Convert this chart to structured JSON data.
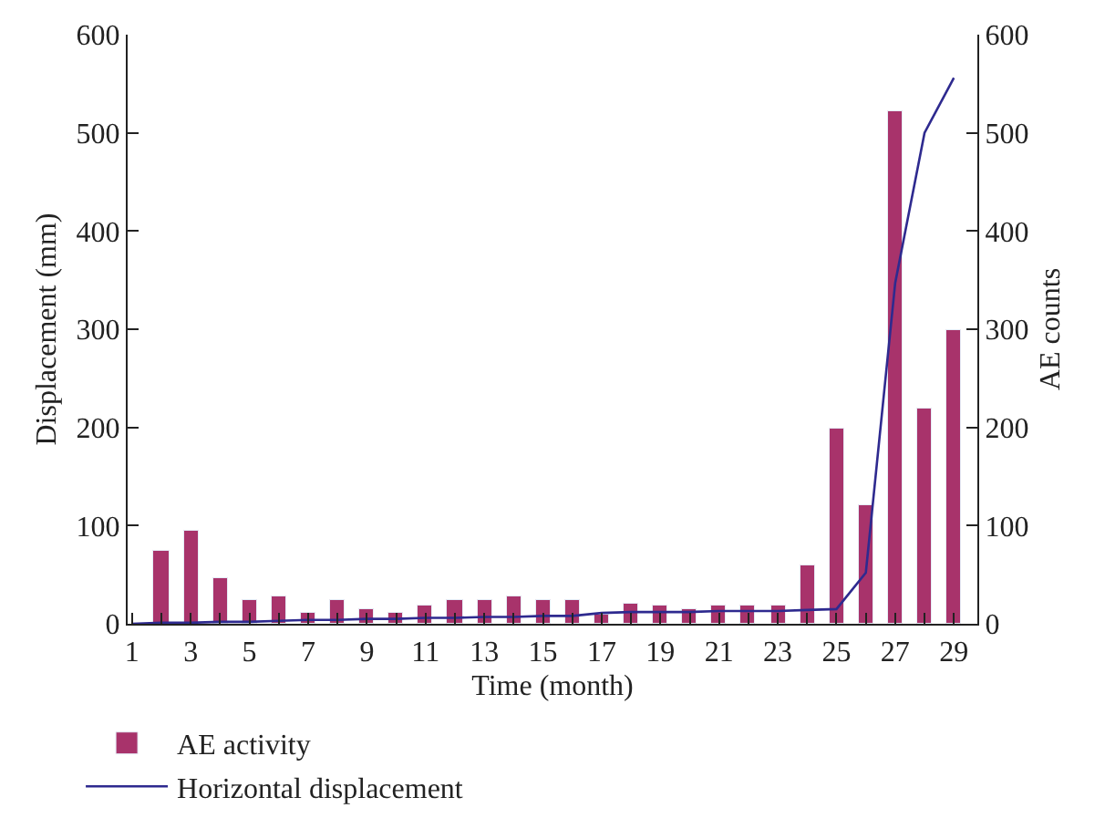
{
  "chart_data": {
    "type": "bar",
    "x": [
      1,
      2,
      3,
      4,
      5,
      6,
      7,
      8,
      9,
      10,
      11,
      12,
      13,
      14,
      15,
      16,
      17,
      18,
      19,
      20,
      21,
      22,
      23,
      24,
      25,
      26,
      27,
      28,
      29
    ],
    "series": [
      {
        "name": "AE activity",
        "axis": "y2",
        "color": "#a8336b",
        "values": [
          null,
          74,
          95,
          46,
          24,
          27,
          12,
          24,
          15,
          12,
          19,
          24,
          24,
          27,
          25,
          24,
          9,
          21,
          18,
          14,
          18,
          18,
          18,
          59,
          199,
          120,
          522,
          220,
          299
        ]
      },
      {
        "name": "Horizontal displacement",
        "type": "line",
        "color": "#2e2a8f",
        "values": [
          0,
          1,
          1,
          2,
          2,
          3,
          4,
          4,
          5,
          5,
          6,
          6,
          7,
          7,
          8,
          8,
          11,
          12,
          12,
          12,
          13,
          13,
          13,
          14,
          15,
          52,
          347,
          500,
          556
        ]
      }
    ],
    "xlabel": "Time (month)",
    "ylabel": "Displacement (mm)",
    "y2label": "AE counts",
    "xlim": [
      0.85,
      29.8
    ],
    "xticks": [
      1,
      {
        "value": 2,
        "label": null
      },
      3,
      {
        "value": 4,
        "label": null
      },
      5,
      {
        "value": 6,
        "label": null
      },
      7,
      {
        "value": 8,
        "label": null
      },
      9,
      {
        "value": 10,
        "label": null
      },
      11,
      {
        "value": 12,
        "label": null
      },
      13,
      {
        "value": 14,
        "label": null
      },
      15,
      {
        "value": 16,
        "label": null
      },
      17,
      {
        "value": 18,
        "label": null
      },
      19,
      {
        "value": 20,
        "label": null
      },
      21,
      {
        "value": 22,
        "label": null
      },
      23,
      {
        "value": 24,
        "label": null
      },
      25,
      {
        "value": 26,
        "label": null
      },
      27,
      {
        "value": 28,
        "label": null
      },
      29
    ],
    "ylim": [
      0,
      600
    ],
    "yticks": [
      0,
      100,
      200,
      300,
      400,
      500,
      600
    ],
    "y2lim": [
      0,
      600
    ],
    "y2ticks": [
      0,
      100,
      200,
      300,
      400,
      500,
      600
    ],
    "legend": "bottom left",
    "marker": "none",
    "line_style": "solid"
  }
}
